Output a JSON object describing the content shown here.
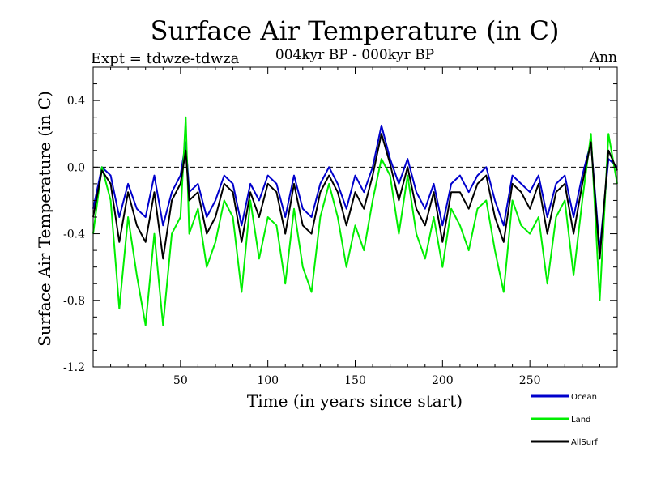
{
  "chart_data": {
    "type": "line",
    "title": "Surface Air Temperature (in C)",
    "subtitle": "004kyr BP - 000kyr BP",
    "expt_label": "Expt = tdwze-tdwza",
    "period_label": "Ann",
    "xlabel": "Time (in years since start)",
    "ylabel": "Surface Air Temperature (in C)",
    "xlim": [
      0,
      300
    ],
    "ylim": [
      -1.2,
      0.6
    ],
    "x_ticks": [
      50,
      100,
      150,
      200,
      250
    ],
    "x_tick_labels": [
      "50",
      "100",
      "150",
      "200",
      "250"
    ],
    "y_ticks": [
      -1.2,
      -0.8,
      -0.4,
      0.0,
      0.4
    ],
    "y_tick_labels": [
      "-1.2",
      "-0.8",
      "-0.4",
      "0.0",
      "0.4"
    ],
    "reference_line": 0.0,
    "legend_position": "bottom-right",
    "series": [
      {
        "name": "Ocean",
        "color": "#0000cc",
        "x": [
          0,
          5,
          10,
          15,
          20,
          25,
          30,
          35,
          40,
          45,
          50,
          53,
          55,
          60,
          65,
          70,
          75,
          80,
          85,
          90,
          95,
          100,
          105,
          110,
          115,
          120,
          125,
          130,
          135,
          140,
          145,
          150,
          155,
          160,
          165,
          170,
          175,
          180,
          185,
          190,
          195,
          200,
          205,
          210,
          215,
          220,
          225,
          230,
          235,
          240,
          245,
          250,
          255,
          260,
          265,
          270,
          275,
          280,
          285,
          290,
          295,
          300
        ],
        "values": [
          -0.25,
          0.0,
          -0.05,
          -0.3,
          -0.1,
          -0.25,
          -0.3,
          -0.05,
          -0.35,
          -0.15,
          -0.05,
          0.15,
          -0.15,
          -0.1,
          -0.3,
          -0.2,
          -0.05,
          -0.1,
          -0.35,
          -0.1,
          -0.2,
          -0.05,
          -0.1,
          -0.3,
          -0.05,
          -0.25,
          -0.3,
          -0.1,
          0.0,
          -0.1,
          -0.25,
          -0.05,
          -0.15,
          0.0,
          0.25,
          0.05,
          -0.1,
          0.05,
          -0.15,
          -0.25,
          -0.1,
          -0.35,
          -0.1,
          -0.05,
          -0.15,
          -0.05,
          0.0,
          -0.2,
          -0.35,
          -0.05,
          -0.1,
          -0.15,
          -0.05,
          -0.3,
          -0.1,
          -0.05,
          -0.3,
          -0.05,
          0.15,
          -0.5,
          0.05,
          0.0
        ]
      },
      {
        "name": "Land",
        "color": "#00ee00",
        "x": [
          0,
          5,
          10,
          15,
          20,
          25,
          30,
          35,
          40,
          45,
          50,
          53,
          55,
          60,
          65,
          70,
          75,
          80,
          85,
          90,
          95,
          100,
          105,
          110,
          115,
          120,
          125,
          130,
          135,
          140,
          145,
          150,
          155,
          160,
          165,
          170,
          175,
          180,
          185,
          190,
          195,
          200,
          205,
          210,
          215,
          220,
          225,
          230,
          235,
          240,
          245,
          250,
          255,
          260,
          265,
          270,
          275,
          280,
          285,
          290,
          295,
          300
        ],
        "values": [
          -0.4,
          0.0,
          -0.2,
          -0.85,
          -0.3,
          -0.65,
          -0.95,
          -0.4,
          -0.95,
          -0.4,
          -0.3,
          0.3,
          -0.4,
          -0.25,
          -0.6,
          -0.45,
          -0.2,
          -0.3,
          -0.75,
          -0.2,
          -0.55,
          -0.3,
          -0.35,
          -0.7,
          -0.25,
          -0.6,
          -0.75,
          -0.3,
          -0.1,
          -0.3,
          -0.6,
          -0.35,
          -0.5,
          -0.2,
          0.05,
          -0.05,
          -0.4,
          -0.05,
          -0.4,
          -0.55,
          -0.3,
          -0.6,
          -0.25,
          -0.35,
          -0.5,
          -0.25,
          -0.2,
          -0.5,
          -0.75,
          -0.2,
          -0.35,
          -0.4,
          -0.3,
          -0.7,
          -0.3,
          -0.2,
          -0.65,
          -0.2,
          0.2,
          -0.8,
          0.2,
          -0.1
        ]
      },
      {
        "name": "AllSurf",
        "color": "#000000",
        "x": [
          0,
          5,
          10,
          15,
          20,
          25,
          30,
          35,
          40,
          45,
          50,
          53,
          55,
          60,
          65,
          70,
          75,
          80,
          85,
          90,
          95,
          100,
          105,
          110,
          115,
          120,
          125,
          130,
          135,
          140,
          145,
          150,
          155,
          160,
          165,
          170,
          175,
          180,
          185,
          190,
          195,
          200,
          205,
          210,
          215,
          220,
          225,
          230,
          235,
          240,
          245,
          250,
          255,
          260,
          265,
          270,
          275,
          280,
          285,
          290,
          295,
          300
        ],
        "values": [
          -0.3,
          -0.02,
          -0.1,
          -0.45,
          -0.15,
          -0.35,
          -0.45,
          -0.15,
          -0.55,
          -0.2,
          -0.1,
          0.1,
          -0.2,
          -0.15,
          -0.4,
          -0.3,
          -0.1,
          -0.15,
          -0.45,
          -0.15,
          -0.3,
          -0.1,
          -0.15,
          -0.4,
          -0.1,
          -0.35,
          -0.4,
          -0.15,
          -0.05,
          -0.15,
          -0.35,
          -0.15,
          -0.25,
          -0.05,
          0.2,
          0.02,
          -0.2,
          0.0,
          -0.25,
          -0.35,
          -0.15,
          -0.45,
          -0.15,
          -0.15,
          -0.25,
          -0.1,
          -0.05,
          -0.3,
          -0.45,
          -0.1,
          -0.15,
          -0.25,
          -0.1,
          -0.4,
          -0.15,
          -0.1,
          -0.4,
          -0.1,
          0.15,
          -0.55,
          0.1,
          -0.02
        ]
      }
    ]
  }
}
